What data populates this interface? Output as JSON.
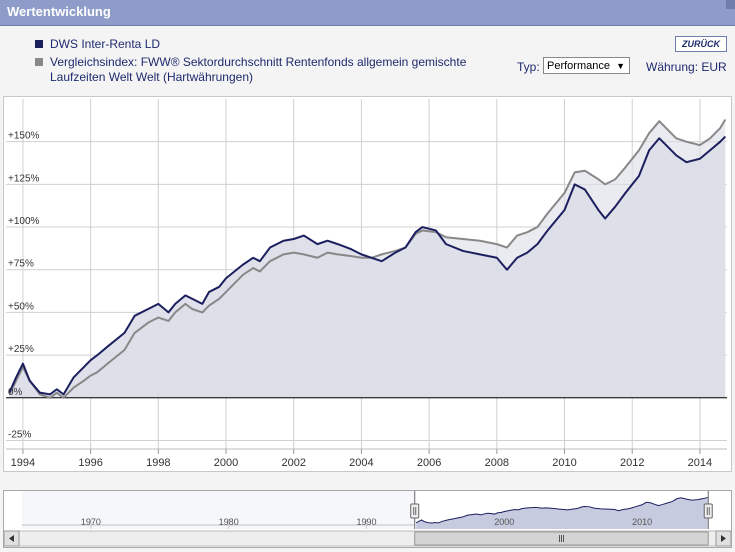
{
  "header": {
    "title": "Wertentwicklung",
    "back_label": "ZURÜCK"
  },
  "controls": {
    "type_label": "Typ:",
    "type_value": "Performance",
    "currency_label": "Währung: EUR"
  },
  "colors": {
    "fund": "#1c1f5e",
    "index": "#888888",
    "titlebar": "#8d9cc9",
    "area": "#dcdde8"
  },
  "chart_data": {
    "type": "line",
    "xlim": [
      1993.5,
      2014.8
    ],
    "ylim": [
      -30,
      175
    ],
    "y_ticks": [
      -25,
      0,
      25,
      50,
      75,
      100,
      125,
      150
    ],
    "y_tick_labels": [
      "-25%",
      "0%",
      "+25%",
      "+50%",
      "+75%",
      "+100%",
      "+125%",
      "+150%"
    ],
    "x_ticks": [
      1994,
      1996,
      1998,
      2000,
      2002,
      2004,
      2006,
      2008,
      2010,
      2012,
      2014
    ],
    "x_tick_labels": [
      "1994",
      "1996",
      "1998",
      "2000",
      "2002",
      "2004",
      "2006",
      "2008",
      "2010",
      "2012",
      "2014"
    ],
    "grid": true,
    "series": [
      {
        "name": "DWS Inter-Renta LD",
        "color": "#1c1f5e",
        "points": [
          [
            1993.6,
            3
          ],
          [
            1993.8,
            12
          ],
          [
            1994.0,
            20
          ],
          [
            1994.2,
            10
          ],
          [
            1994.5,
            3
          ],
          [
            1994.8,
            2
          ],
          [
            1995.0,
            5
          ],
          [
            1995.2,
            2
          ],
          [
            1995.5,
            12
          ],
          [
            1995.8,
            18
          ],
          [
            1996.0,
            22
          ],
          [
            1996.2,
            25
          ],
          [
            1996.5,
            30
          ],
          [
            1997.0,
            38
          ],
          [
            1997.3,
            48
          ],
          [
            1997.7,
            52
          ],
          [
            1998.0,
            55
          ],
          [
            1998.3,
            50
          ],
          [
            1998.5,
            55
          ],
          [
            1998.8,
            60
          ],
          [
            1999.0,
            58
          ],
          [
            1999.3,
            55
          ],
          [
            1999.5,
            62
          ],
          [
            1999.8,
            65
          ],
          [
            2000.0,
            70
          ],
          [
            2000.5,
            78
          ],
          [
            2000.8,
            82
          ],
          [
            2001.0,
            80
          ],
          [
            2001.3,
            88
          ],
          [
            2001.7,
            92
          ],
          [
            2002.0,
            93
          ],
          [
            2002.3,
            95
          ],
          [
            2002.7,
            90
          ],
          [
            2003.0,
            92
          ],
          [
            2003.3,
            90
          ],
          [
            2003.7,
            87
          ],
          [
            2004.0,
            84
          ],
          [
            2004.3,
            82
          ],
          [
            2004.6,
            80
          ],
          [
            2005.0,
            85
          ],
          [
            2005.3,
            88
          ],
          [
            2005.6,
            97
          ],
          [
            2005.8,
            100
          ],
          [
            2006.2,
            98
          ],
          [
            2006.5,
            90
          ],
          [
            2007.0,
            86
          ],
          [
            2007.5,
            84
          ],
          [
            2008.0,
            82
          ],
          [
            2008.3,
            75
          ],
          [
            2008.6,
            82
          ],
          [
            2008.9,
            85
          ],
          [
            2009.2,
            90
          ],
          [
            2009.5,
            98
          ],
          [
            2010.0,
            110
          ],
          [
            2010.3,
            125
          ],
          [
            2010.6,
            122
          ],
          [
            2011.0,
            110
          ],
          [
            2011.2,
            105
          ],
          [
            2011.5,
            112
          ],
          [
            2011.8,
            120
          ],
          [
            2012.2,
            130
          ],
          [
            2012.5,
            145
          ],
          [
            2012.8,
            152
          ],
          [
            2013.0,
            148
          ],
          [
            2013.3,
            142
          ],
          [
            2013.6,
            138
          ],
          [
            2014.0,
            140
          ],
          [
            2014.3,
            145
          ],
          [
            2014.6,
            150
          ],
          [
            2014.75,
            153
          ]
        ]
      },
      {
        "name": "Vergleichsindex: FWW® Sektordurchschnitt Rentenfonds allgemein gemischte Laufzeiten Welt Welt (Hartwährungen)",
        "color": "#888888",
        "points": [
          [
            1993.6,
            2
          ],
          [
            1993.8,
            10
          ],
          [
            1994.0,
            18
          ],
          [
            1994.2,
            10
          ],
          [
            1994.5,
            2
          ],
          [
            1994.8,
            0
          ],
          [
            1995.0,
            3
          ],
          [
            1995.2,
            0
          ],
          [
            1995.5,
            6
          ],
          [
            1995.8,
            10
          ],
          [
            1996.0,
            13
          ],
          [
            1996.2,
            15
          ],
          [
            1996.5,
            20
          ],
          [
            1997.0,
            28
          ],
          [
            1997.3,
            38
          ],
          [
            1997.7,
            44
          ],
          [
            1998.0,
            47
          ],
          [
            1998.3,
            45
          ],
          [
            1998.5,
            50
          ],
          [
            1998.8,
            55
          ],
          [
            1999.0,
            52
          ],
          [
            1999.3,
            50
          ],
          [
            1999.5,
            54
          ],
          [
            1999.8,
            58
          ],
          [
            2000.0,
            62
          ],
          [
            2000.5,
            72
          ],
          [
            2000.8,
            76
          ],
          [
            2001.0,
            74
          ],
          [
            2001.3,
            80
          ],
          [
            2001.7,
            84
          ],
          [
            2002.0,
            85
          ],
          [
            2002.3,
            84
          ],
          [
            2002.7,
            82
          ],
          [
            2003.0,
            85
          ],
          [
            2003.3,
            84
          ],
          [
            2003.7,
            83
          ],
          [
            2004.0,
            82
          ],
          [
            2004.3,
            82
          ],
          [
            2004.6,
            84
          ],
          [
            2005.0,
            86
          ],
          [
            2005.3,
            88
          ],
          [
            2005.6,
            96
          ],
          [
            2005.8,
            98
          ],
          [
            2006.2,
            97
          ],
          [
            2006.5,
            94
          ],
          [
            2007.0,
            93
          ],
          [
            2007.5,
            92
          ],
          [
            2008.0,
            90
          ],
          [
            2008.3,
            88
          ],
          [
            2008.6,
            95
          ],
          [
            2008.9,
            97
          ],
          [
            2009.2,
            100
          ],
          [
            2009.5,
            108
          ],
          [
            2010.0,
            120
          ],
          [
            2010.3,
            132
          ],
          [
            2010.6,
            133
          ],
          [
            2011.0,
            128
          ],
          [
            2011.2,
            125
          ],
          [
            2011.5,
            128
          ],
          [
            2011.8,
            135
          ],
          [
            2012.2,
            145
          ],
          [
            2012.5,
            155
          ],
          [
            2012.8,
            162
          ],
          [
            2013.0,
            158
          ],
          [
            2013.3,
            152
          ],
          [
            2013.6,
            150
          ],
          [
            2014.0,
            148
          ],
          [
            2014.3,
            152
          ],
          [
            2014.6,
            158
          ],
          [
            2014.75,
            163
          ]
        ]
      }
    ],
    "navigator": {
      "tick_labels": [
        "1970",
        "1980",
        "1990",
        "2000",
        "2010"
      ]
    }
  }
}
